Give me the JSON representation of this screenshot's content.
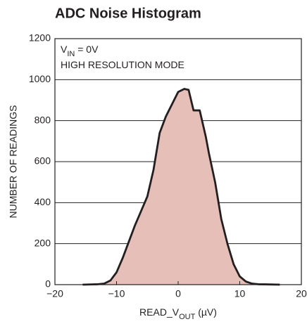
{
  "chart_data": {
    "type": "area",
    "title": "ADC Noise Histogram",
    "annotations": [
      {
        "parts": [
          "V",
          "IN",
          " = 0V"
        ]
      },
      {
        "parts": [
          "HIGH RESOLUTION MODE"
        ]
      }
    ],
    "x_label_parts": [
      "READ_V",
      "OUT",
      " (µV)"
    ],
    "y_label": "NUMBER OF READINGS",
    "series": [
      {
        "color": "#e6c0b8",
        "line_color": "#231f20",
        "x": [
          -15.5,
          -13,
          -12,
          -11,
          -10,
          -9,
          -8,
          -7,
          -6,
          -5,
          -4,
          -3,
          -2,
          -1,
          0,
          1,
          1.7,
          2.5,
          3.5,
          4.5,
          5,
          6,
          7,
          8,
          9,
          10,
          11,
          12,
          13,
          16.5
        ],
        "values": [
          0,
          2,
          5,
          20,
          60,
          130,
          210,
          290,
          360,
          430,
          560,
          740,
          820,
          880,
          940,
          955,
          950,
          850,
          850,
          720,
          640,
          500,
          320,
          200,
          100,
          40,
          15,
          5,
          2,
          0
        ]
      }
    ],
    "xlim": [
      -20,
      20
    ],
    "xticks": [
      {
        "value": -20,
        "label": "−20"
      },
      {
        "value": -10,
        "label": "−10"
      },
      0,
      10,
      20
    ],
    "ylim": [
      0,
      1200
    ],
    "yticks": [
      0,
      200,
      400,
      600,
      800,
      1000,
      1200
    ],
    "grid": true
  }
}
